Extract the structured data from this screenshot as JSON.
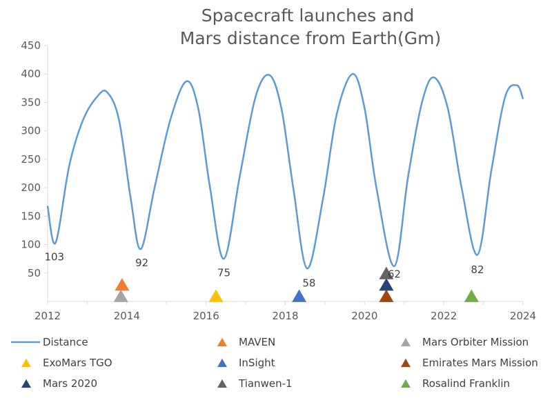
{
  "chart_data": {
    "type": "line",
    "title_lines": [
      "Spacecraft launches and",
      "Mars distance from Earth(Gm)"
    ],
    "xlim": [
      2012,
      2024
    ],
    "ylim": [
      0,
      450
    ],
    "x_ticks": [
      2012,
      2014,
      2016,
      2018,
      2020,
      2022,
      2024
    ],
    "y_ticks": [
      50,
      100,
      150,
      200,
      250,
      300,
      350,
      400,
      450
    ],
    "grid": "none",
    "legend_position": "bottom",
    "series": [
      {
        "name": "Distance",
        "type": "line",
        "color": "#5b9bd5",
        "points": [
          [
            2012.0,
            168
          ],
          [
            2012.2,
            103
          ],
          [
            2012.55,
            240
          ],
          [
            2012.9,
            320
          ],
          [
            2013.25,
            360
          ],
          [
            2013.5,
            368
          ],
          [
            2013.8,
            320
          ],
          [
            2014.1,
            180
          ],
          [
            2014.35,
            92
          ],
          [
            2014.7,
            200
          ],
          [
            2015.1,
            320
          ],
          [
            2015.5,
            387
          ],
          [
            2015.8,
            340
          ],
          [
            2016.1,
            200
          ],
          [
            2016.45,
            75
          ],
          [
            2016.85,
            220
          ],
          [
            2017.25,
            360
          ],
          [
            2017.6,
            398
          ],
          [
            2017.9,
            340
          ],
          [
            2018.2,
            200
          ],
          [
            2018.55,
            58
          ],
          [
            2018.95,
            180
          ],
          [
            2019.3,
            330
          ],
          [
            2019.7,
            400
          ],
          [
            2020.0,
            340
          ],
          [
            2020.3,
            200
          ],
          [
            2020.75,
            62
          ],
          [
            2021.1,
            220
          ],
          [
            2021.45,
            350
          ],
          [
            2021.75,
            394
          ],
          [
            2022.1,
            340
          ],
          [
            2022.45,
            200
          ],
          [
            2022.85,
            82
          ],
          [
            2023.2,
            230
          ],
          [
            2023.55,
            360
          ],
          [
            2023.85,
            380
          ],
          [
            2024.0,
            356
          ]
        ]
      },
      {
        "name": "MAVEN",
        "type": "marker",
        "color": "#ed7d31",
        "points": [
          [
            2013.88,
            30
          ]
        ]
      },
      {
        "name": "Mars Orbiter Mission",
        "type": "marker",
        "color": "#a5a5a5",
        "points": [
          [
            2013.85,
            10
          ]
        ]
      },
      {
        "name": "ExoMars TGO",
        "type": "marker",
        "color": "#ffc000",
        "points": [
          [
            2016.25,
            10
          ]
        ]
      },
      {
        "name": "InSight",
        "type": "marker",
        "color": "#4472c4",
        "points": [
          [
            2018.35,
            10
          ]
        ]
      },
      {
        "name": "Emirates Mars Mission",
        "type": "marker",
        "color": "#9e480e",
        "points": [
          [
            2020.55,
            10
          ]
        ]
      },
      {
        "name": "Mars 2020",
        "type": "marker",
        "color": "#264478",
        "points": [
          [
            2020.55,
            30
          ]
        ]
      },
      {
        "name": "Tianwen-1",
        "type": "marker",
        "color": "#636363",
        "points": [
          [
            2020.55,
            50
          ]
        ]
      },
      {
        "name": "Rosalind Franklin",
        "type": "marker",
        "color": "#70ad47",
        "points": [
          [
            2022.7,
            10
          ]
        ]
      }
    ],
    "data_labels": [
      {
        "text": "103",
        "x": 2012.17,
        "y": 72
      },
      {
        "text": "92",
        "x": 2014.38,
        "y": 62
      },
      {
        "text": "75",
        "x": 2016.45,
        "y": 44
      },
      {
        "text": "58",
        "x": 2018.6,
        "y": 26
      },
      {
        "text": "62",
        "x": 2020.75,
        "y": 42
      },
      {
        "text": "82",
        "x": 2022.85,
        "y": 50
      }
    ],
    "legend": {
      "columns": 3,
      "items": [
        "Distance",
        "MAVEN",
        "Mars Orbiter Mission",
        "ExoMars TGO",
        "InSight",
        "Emirates Mars Mission",
        "Mars 2020",
        "Tianwen-1",
        "Rosalind Franklin"
      ]
    }
  }
}
